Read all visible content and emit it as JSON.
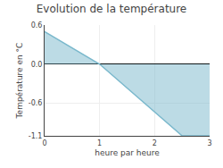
{
  "chart_data": {
    "type": "area",
    "title": "Evolution de la température",
    "xlabel": "heure par heure",
    "ylabel": "Température en °C",
    "x": [
      0,
      1,
      2.5,
      3
    ],
    "values": [
      0.5,
      0.0,
      -1.1,
      -1.1
    ],
    "color": "#7ab8cc",
    "xlim": [
      0,
      3
    ],
    "ylim": [
      -1.1,
      0.6
    ],
    "xticks": [
      0,
      1,
      2,
      3
    ],
    "yticks": [
      -1.1,
      -0.6,
      {
        "value": 0,
        "label": "0.0"
      },
      0.6
    ],
    "grid": true
  }
}
